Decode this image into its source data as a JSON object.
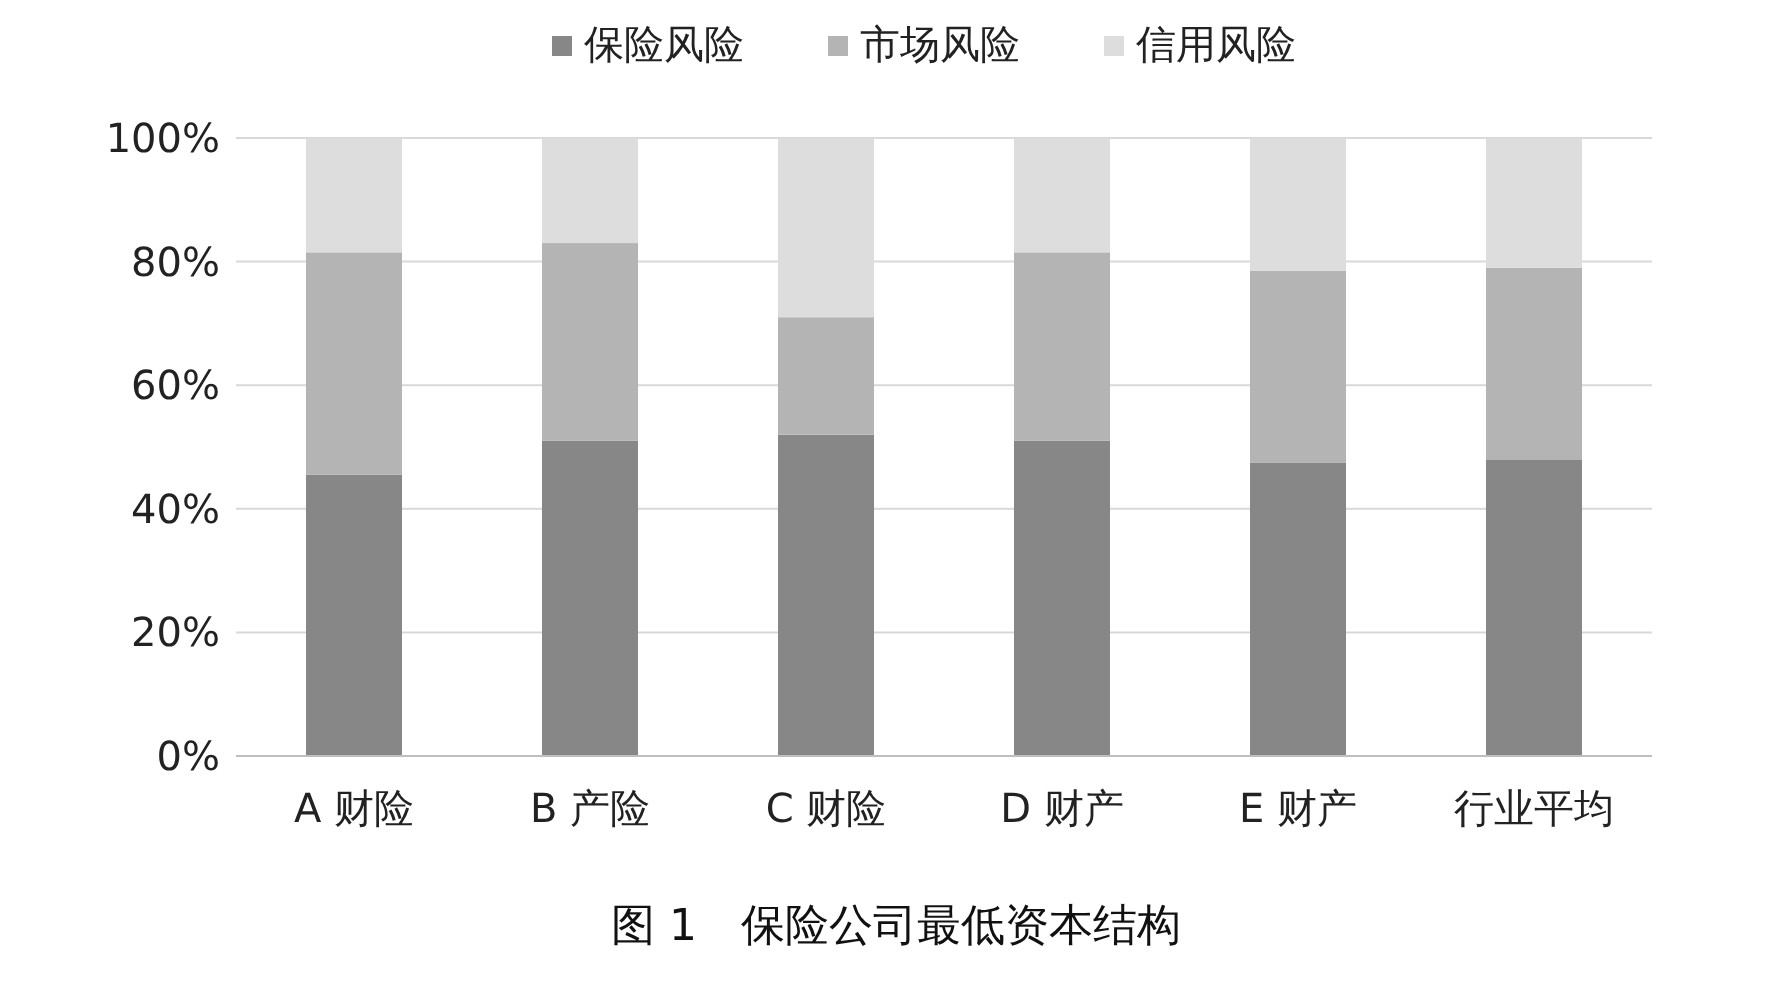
{
  "chart_data": {
    "type": "bar",
    "stacked": true,
    "title": "图 1　保险公司最低资本结构",
    "categories": [
      "A 财险",
      "B 产险",
      "C 财险",
      "D 财产",
      "E 财产",
      "行业平均"
    ],
    "series": [
      {
        "name": "保险风险",
        "color": "#878787",
        "values": [
          45.5,
          51,
          52,
          51,
          47.5,
          48
        ]
      },
      {
        "name": "市场风险",
        "color": "#b4b4b4",
        "values": [
          36,
          32,
          19,
          30.5,
          31,
          31
        ]
      },
      {
        "name": "信用风险",
        "color": "#dcdddc",
        "values": [
          18.5,
          17,
          29,
          18.5,
          21.5,
          21
        ]
      }
    ],
    "ylim": [
      0,
      100
    ],
    "yticks": [
      {
        "value": 0,
        "label": "0%"
      },
      {
        "value": 20,
        "label": "20%"
      },
      {
        "value": 40,
        "label": "40%"
      },
      {
        "value": 60,
        "label": "60%"
      },
      {
        "value": 80,
        "label": "80%"
      },
      {
        "value": 100,
        "label": "100%"
      }
    ],
    "grid": "y",
    "legend": "top"
  }
}
